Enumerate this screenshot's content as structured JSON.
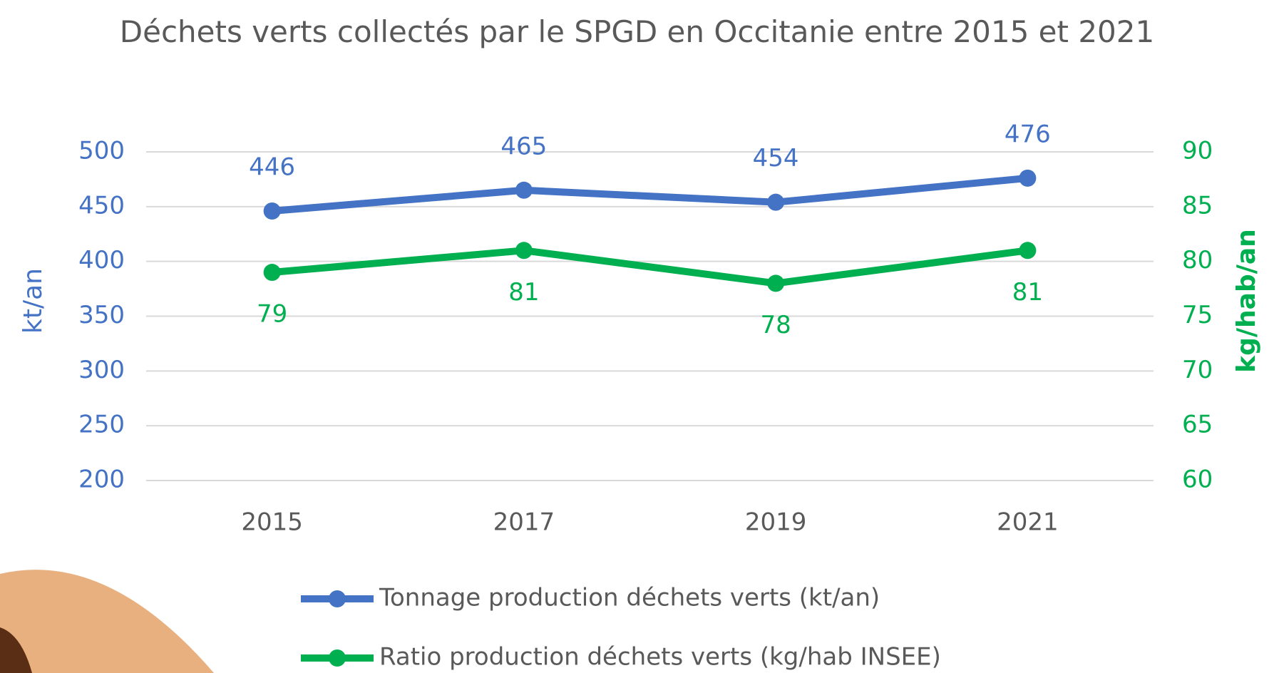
{
  "chart_data": {
    "type": "line",
    "title": "Déchets verts collectés par le SPGD en Occitanie entre 2015 et 2021",
    "categories": [
      "2015",
      "2017",
      "2019",
      "2021"
    ],
    "series": [
      {
        "name": "Tonnage production déchets verts (kt/an)",
        "color": "#4472c4",
        "values": [
          446,
          465,
          454,
          476
        ]
      },
      {
        "name": "Ratio production déchets verts (kg/hab INSEE)",
        "color": "#00b050",
        "values": [
          79,
          81,
          78,
          81
        ],
        "axis": "y2"
      }
    ],
    "ylabel": "kt/an",
    "y2label": "kg/hab/an",
    "ylim": [
      200,
      500
    ],
    "yticks": [
      200,
      250,
      300,
      350,
      400,
      450,
      500
    ],
    "y2lim": [
      60,
      90
    ],
    "y2ticks": [
      60,
      65,
      70,
      75,
      80,
      85,
      90
    ],
    "grid": true
  }
}
